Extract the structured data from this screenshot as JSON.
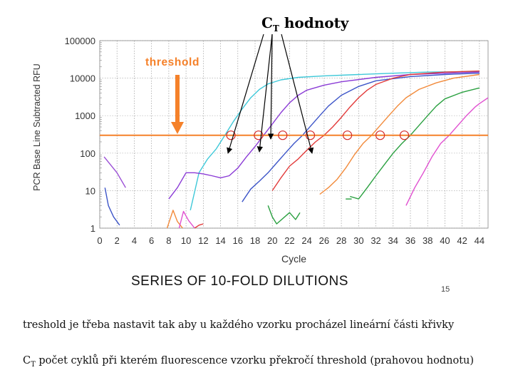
{
  "header": {
    "ct_label": "C",
    "ct_sub": "T",
    "ct_rest": " hodnoty"
  },
  "series_title": "SERIES OF 10-FOLD DILUTIONS",
  "slide_number": "15",
  "notes": {
    "line1": "treshold je třeba nastavit tak aby u každého vzorku procházel lineární části křivky",
    "line2_prefix": "C",
    "line2_sub": "T",
    "line2_rest": " počet cyklů při kterém fluorescence vzorku překročí threshold (prahovou hodnotu)"
  },
  "chart_data": {
    "type": "line",
    "title": "",
    "xlabel": "Cycle",
    "ylabel": "PCR Base Line Subtracted RFU",
    "xlim": [
      0,
      45
    ],
    "ylim": [
      1,
      100000
    ],
    "yscale": "log",
    "x_ticks": [
      0,
      2,
      4,
      6,
      8,
      10,
      12,
      14,
      16,
      18,
      20,
      22,
      24,
      26,
      28,
      30,
      32,
      34,
      36,
      38,
      40,
      42,
      44
    ],
    "y_ticks": [
      1,
      10,
      100,
      1000,
      10000,
      100000
    ],
    "y_tick_labels": [
      "1",
      "10",
      "100",
      "1000",
      "10000",
      "100000"
    ],
    "threshold": {
      "value": 300,
      "label": "threshold",
      "color": "#f5812a"
    },
    "ct_points": [
      {
        "x": 15.2,
        "y": 300
      },
      {
        "x": 18.4,
        "y": 300
      },
      {
        "x": 21.2,
        "y": 300
      },
      {
        "x": 24.4,
        "y": 300
      },
      {
        "x": 28.7,
        "y": 300
      },
      {
        "x": 32.5,
        "y": 300
      },
      {
        "x": 35.3,
        "y": 300
      }
    ],
    "series": [
      {
        "name": "violet-early",
        "color": "#9b4fd6",
        "points": [
          [
            0.5,
            80
          ],
          [
            2,
            30
          ],
          [
            3,
            12
          ]
        ]
      },
      {
        "name": "cyan",
        "color": "#3ec8d8",
        "points": [
          [
            10.5,
            3
          ],
          [
            11.5,
            30
          ],
          [
            12.5,
            70
          ],
          [
            13.5,
            130
          ],
          [
            14.5,
            300
          ],
          [
            15.5,
            700
          ],
          [
            16.5,
            1500
          ],
          [
            17.5,
            3000
          ],
          [
            18.5,
            5000
          ],
          [
            19.5,
            7000
          ],
          [
            21,
            9000
          ],
          [
            23,
            10500
          ],
          [
            26,
            11500
          ],
          [
            30,
            12500
          ],
          [
            34,
            13500
          ],
          [
            38,
            14500
          ],
          [
            44,
            15000
          ]
        ]
      },
      {
        "name": "violet",
        "color": "#8b3cd6",
        "points": [
          [
            8,
            6
          ],
          [
            9,
            12
          ],
          [
            10,
            30
          ],
          [
            11,
            30
          ],
          [
            12,
            28
          ],
          [
            13,
            25
          ],
          [
            14,
            22
          ],
          [
            15,
            25
          ],
          [
            16,
            40
          ],
          [
            17,
            80
          ],
          [
            18,
            150
          ],
          [
            19,
            300
          ],
          [
            20,
            600
          ],
          [
            21,
            1200
          ],
          [
            22,
            2200
          ],
          [
            23,
            3500
          ],
          [
            24,
            4800
          ],
          [
            26,
            6500
          ],
          [
            28,
            8000
          ],
          [
            32,
            10500
          ],
          [
            36,
            12500
          ],
          [
            40,
            13500
          ],
          [
            44,
            14500
          ]
        ]
      },
      {
        "name": "blue",
        "color": "#3d55c8",
        "points": [
          [
            16.5,
            5
          ],
          [
            17.5,
            11
          ],
          [
            18.5,
            18
          ],
          [
            19.5,
            30
          ],
          [
            20.5,
            55
          ],
          [
            21.5,
            100
          ],
          [
            22.5,
            180
          ],
          [
            23.5,
            300
          ],
          [
            24.5,
            550
          ],
          [
            25.5,
            1000
          ],
          [
            26.5,
            1800
          ],
          [
            28,
            3500
          ],
          [
            30,
            6000
          ],
          [
            32,
            8500
          ],
          [
            36,
            11000
          ],
          [
            40,
            12500
          ],
          [
            44,
            13500
          ]
        ]
      },
      {
        "name": "red",
        "color": "#e23a3a",
        "points": [
          [
            20,
            10
          ],
          [
            21,
            22
          ],
          [
            22,
            45
          ],
          [
            23,
            70
          ],
          [
            24,
            120
          ],
          [
            25,
            200
          ],
          [
            26,
            300
          ],
          [
            27,
            500
          ],
          [
            28,
            900
          ],
          [
            29,
            1700
          ],
          [
            30,
            3000
          ],
          [
            31,
            4800
          ],
          [
            32,
            6800
          ],
          [
            34,
            10000
          ],
          [
            36,
            12500
          ],
          [
            40,
            14500
          ],
          [
            44,
            15500
          ]
        ]
      },
      {
        "name": "orange",
        "color": "#f28a3a",
        "points": [
          [
            25.5,
            8
          ],
          [
            26.5,
            12
          ],
          [
            27.5,
            20
          ],
          [
            28.5,
            40
          ],
          [
            29.5,
            90
          ],
          [
            30.5,
            180
          ],
          [
            31.5,
            300
          ],
          [
            32.5,
            550
          ],
          [
            33.5,
            1000
          ],
          [
            34.5,
            1800
          ],
          [
            35.5,
            3000
          ],
          [
            37,
            5000
          ],
          [
            39,
            7500
          ],
          [
            41,
            10000
          ],
          [
            44,
            12500
          ]
        ]
      },
      {
        "name": "green",
        "color": "#2aa040",
        "points": [
          [
            29,
            7
          ],
          [
            30,
            6
          ],
          [
            31,
            12
          ],
          [
            32,
            25
          ],
          [
            33,
            50
          ],
          [
            34,
            100
          ],
          [
            35,
            180
          ],
          [
            36,
            300
          ],
          [
            37,
            550
          ],
          [
            38,
            1000
          ],
          [
            39,
            1800
          ],
          [
            40,
            2800
          ],
          [
            42,
            4200
          ],
          [
            44,
            5500
          ]
        ]
      },
      {
        "name": "magenta",
        "color": "#e050d0",
        "points": [
          [
            35.5,
            4
          ],
          [
            36.5,
            12
          ],
          [
            37.5,
            30
          ],
          [
            38.5,
            80
          ],
          [
            39.5,
            180
          ],
          [
            40.5,
            300
          ],
          [
            41.5,
            550
          ],
          [
            42.5,
            1000
          ],
          [
            43.5,
            1700
          ],
          [
            44,
            2100
          ],
          [
            45,
            3000
          ]
        ]
      },
      {
        "name": "orange-noise",
        "color": "#f28a3a",
        "points": [
          [
            7.8,
            1
          ],
          [
            8.5,
            3
          ],
          [
            9,
            1.5
          ],
          [
            9.6,
            1
          ]
        ]
      },
      {
        "name": "magenta-noise",
        "color": "#e050d0",
        "points": [
          [
            9.2,
            1
          ],
          [
            9.7,
            2.8
          ],
          [
            10.3,
            1.6
          ],
          [
            11,
            1
          ]
        ]
      },
      {
        "name": "red-noise",
        "color": "#e23a3a",
        "points": [
          [
            11,
            1
          ],
          [
            11.5,
            1.2
          ],
          [
            12,
            1.3
          ]
        ]
      },
      {
        "name": "blue-noise",
        "color": "#3d55c8",
        "points": [
          [
            0.6,
            12
          ],
          [
            1,
            4
          ],
          [
            1.6,
            2
          ],
          [
            2.3,
            1.2
          ]
        ]
      },
      {
        "name": "green-noise",
        "color": "#2aa040",
        "points": [
          [
            19.5,
            4
          ],
          [
            20,
            2
          ],
          [
            20.5,
            1.3
          ],
          [
            22,
            2.6
          ],
          [
            22.7,
            1.7
          ],
          [
            23.2,
            2.6
          ]
        ]
      },
      {
        "name": "green-late",
        "color": "#2aa040",
        "points": [
          [
            28.5,
            6
          ],
          [
            29.2,
            6
          ]
        ]
      }
    ]
  }
}
